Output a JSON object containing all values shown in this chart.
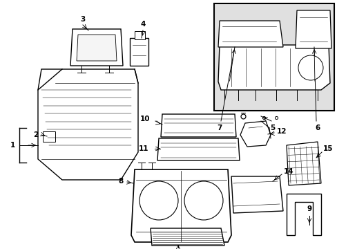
{
  "bg_color": "#ffffff",
  "line_color": "#000000",
  "label_color": "#000000",
  "inset_bg": "#e0e0e0",
  "lw_main": 0.8,
  "fontsize": 7.5
}
